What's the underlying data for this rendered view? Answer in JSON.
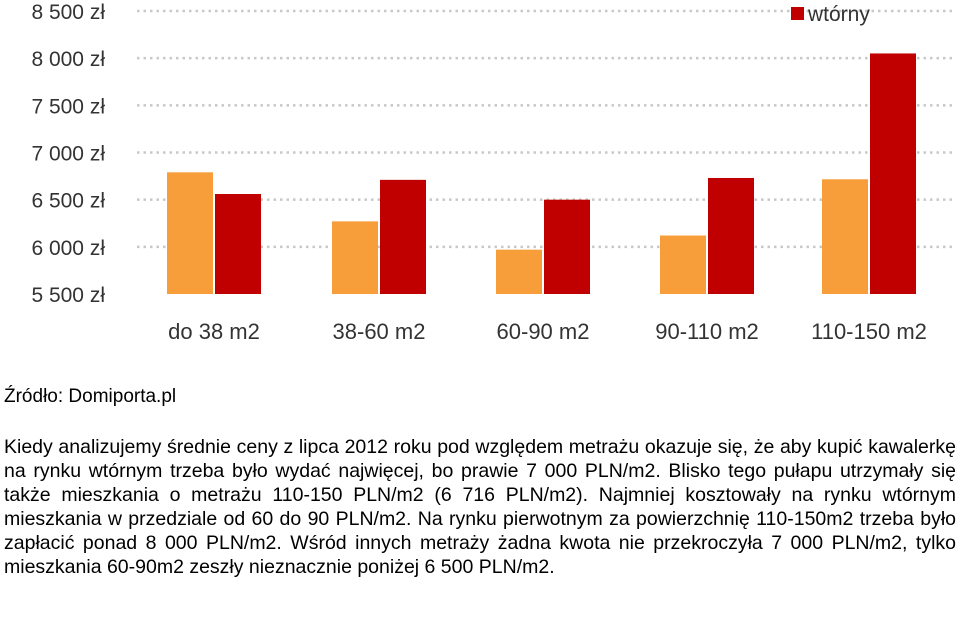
{
  "chart_data": {
    "type": "bar",
    "categories": [
      "do 38 m2",
      "38-60 m2",
      "60-90 m2",
      "90-110 m2",
      "110-150 m2"
    ],
    "series": [
      {
        "name": "",
        "color": "#f79d3a",
        "values": [
          6790,
          6270,
          5970,
          6120,
          6716
        ]
      },
      {
        "name": "wtórny",
        "color": "#c00000",
        "values": [
          6560,
          6710,
          6500,
          6730,
          8050
        ]
      }
    ],
    "y_ticks": [
      {
        "value": 8500,
        "label": "8 500 zł"
      },
      {
        "value": 8000,
        "label": "8 000 zł"
      },
      {
        "value": 7500,
        "label": "7 500 zł"
      },
      {
        "value": 7000,
        "label": "7 000 zł"
      },
      {
        "value": 6500,
        "label": "6 500 zł"
      },
      {
        "value": 6000,
        "label": "6 000 zł"
      },
      {
        "value": 5500,
        "label": "5 500 zł"
      }
    ],
    "ylim": [
      5500,
      8500
    ],
    "grid": true,
    "legend_position": "top-right"
  },
  "source": "Źródło: Domiporta.pl",
  "paragraph": "Kiedy analizujemy średnie ceny z lipca 2012 roku pod względem metrażu okazuje się, że aby kupić kawalerkę na rynku wtórnym trzeba było wydać najwięcej, bo prawie 7 000 PLN/m2. Blisko tego pułapu utrzymały się także mieszkania o metrażu 110-150 PLN/m2 (6 716 PLN/m2). Najmniej kosztowały na rynku wtórnym mieszkania w przedziale od 60 do 90 PLN/m2. Na rynku pierwotnym za powierzchnię 110-150m2 trzeba było zapłacić ponad 8 000 PLN/m2. Wśród innych metraży żadna kwota nie przekroczyła 7 000 PLN/m2, tylko mieszkania 60-90m2 zeszły nieznacznie poniżej 6 500 PLN/m2."
}
